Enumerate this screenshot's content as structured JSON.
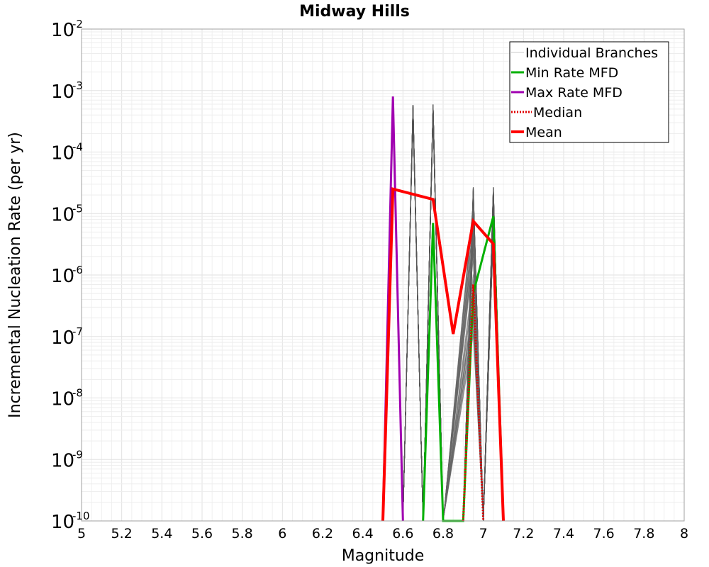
{
  "chart_data": {
    "type": "line",
    "title": "Midway Hills",
    "xlabel": "Magnitude",
    "ylabel": "Incremental Nucleation Rate (per yr)",
    "xlim": [
      5,
      8
    ],
    "ylim": [
      1e-10,
      0.01
    ],
    "yscale": "log",
    "grid": true,
    "legend_position": "top-right",
    "x_ticks": [
      "5",
      "5.2",
      "5.4",
      "5.6",
      "5.8",
      "6",
      "6.2",
      "6.4",
      "6.6",
      "6.8",
      "7",
      "7.2",
      "7.4",
      "7.6",
      "7.8",
      "8"
    ],
    "y_ticks": [
      {
        "base": "10",
        "exp": "-2",
        "value": 0.01
      },
      {
        "base": "10",
        "exp": "-3",
        "value": 0.001
      },
      {
        "base": "10",
        "exp": "-4",
        "value": 0.0001
      },
      {
        "base": "10",
        "exp": "-5",
        "value": 1e-05
      },
      {
        "base": "10",
        "exp": "-6",
        "value": 1e-06
      },
      {
        "base": "10",
        "exp": "-7",
        "value": 1e-07
      },
      {
        "base": "10",
        "exp": "-8",
        "value": 1e-08
      },
      {
        "base": "10",
        "exp": "-9",
        "value": 1e-09
      },
      {
        "base": "10",
        "exp": "-10",
        "value": 1e-10
      }
    ],
    "legend": [
      {
        "label": "Individual Branches",
        "color": "#c8c8c8",
        "style": "solid-thin"
      },
      {
        "label": "Min Rate MFD",
        "color": "#00b000",
        "style": "solid"
      },
      {
        "label": "Max Rate MFD",
        "color": "#a000b0",
        "style": "solid"
      },
      {
        "label": "Median",
        "color": "#e00000",
        "style": "dotted"
      },
      {
        "label": "Mean",
        "color": "#ff0000",
        "style": "solid-thick"
      }
    ],
    "series": [
      {
        "name": "Max Rate MFD",
        "color": "#a000b0",
        "points": [
          [
            6.5,
            1e-10
          ],
          [
            6.55,
            0.0008
          ],
          [
            6.6,
            1e-10
          ]
        ]
      },
      {
        "name": "Min Rate MFD",
        "color": "#00b000",
        "points": [
          [
            6.7,
            1e-10
          ],
          [
            6.75,
            7e-06
          ],
          [
            6.8,
            1e-10
          ],
          [
            6.9,
            1e-10
          ],
          [
            6.95,
            5e-07
          ],
          [
            7.05,
            9e-06
          ],
          [
            7.1,
            1e-10
          ]
        ]
      },
      {
        "name": "Median",
        "color": "#e00000",
        "points": [
          [
            6.9,
            1e-10
          ],
          [
            6.95,
            7e-07
          ],
          [
            7.0,
            1e-10
          ]
        ]
      },
      {
        "name": "Mean",
        "color": "#ff0000",
        "points": [
          [
            6.5,
            1e-10
          ],
          [
            6.55,
            2.5e-05
          ],
          [
            6.75,
            1.7e-05
          ],
          [
            6.85,
            1.1e-07
          ],
          [
            6.95,
            7.5e-06
          ],
          [
            7.05,
            3.2e-06
          ],
          [
            7.1,
            1e-10
          ]
        ]
      }
    ],
    "branch_spikes": [
      {
        "name": "Individual Branches",
        "x_peak": 6.65,
        "x_range": [
          6.6,
          6.7
        ],
        "peak_range": [
          0.0004,
          0.0006
        ]
      },
      {
        "name": "Individual Branches",
        "x_peak": 6.75,
        "x_range": [
          6.7,
          6.8
        ],
        "peak_range": [
          0.0004,
          0.0006
        ]
      },
      {
        "name": "Individual Branches",
        "x_peak": 6.95,
        "x_range": [
          6.9,
          7.0
        ],
        "peak_range": [
          5e-06,
          2.7e-05
        ]
      },
      {
        "name": "Individual Branches",
        "x_peak": 7.05,
        "x_range": [
          7.0,
          7.1
        ],
        "peak_range": [
          5e-06,
          2.7e-05
        ]
      },
      {
        "name": "Individual Branches",
        "fan_from": [
          6.8,
          1e-10
        ],
        "fan_to_x": 6.95,
        "fan_range": [
          1e-07,
          2e-05
        ]
      }
    ]
  }
}
